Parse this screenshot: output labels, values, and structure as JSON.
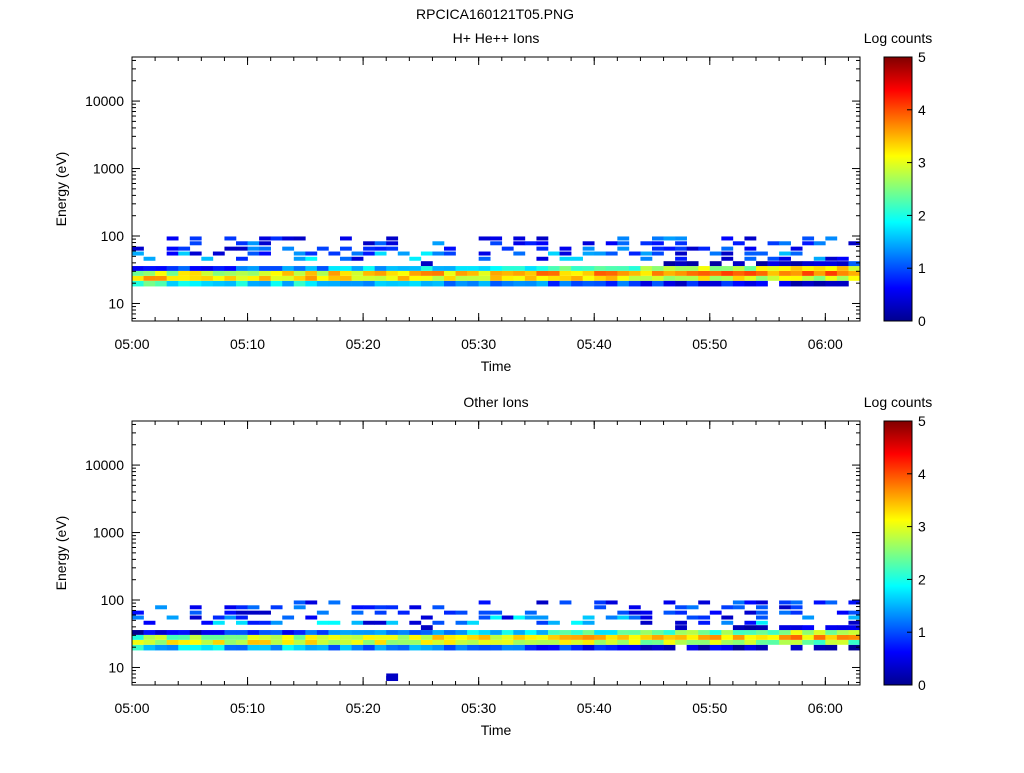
{
  "figure_title": "RPCICA160121T05.PNG",
  "colormap": [
    "#00008f",
    "#0000ff",
    "#0080ff",
    "#00ffff",
    "#80ff80",
    "#ffff00",
    "#ff8000",
    "#ff0000",
    "#800000"
  ],
  "chart_data": [
    {
      "type": "heatmap",
      "title": "H+ He++ Ions",
      "xlabel": "Time",
      "ylabel": "Energy (eV)",
      "x_ticks": [
        "05:00",
        "05:10",
        "05:20",
        "05:30",
        "05:40",
        "05:50",
        "06:00"
      ],
      "y_ticks": [
        "10",
        "100",
        "1000",
        "10000"
      ],
      "y_scale": "log",
      "xlim": [
        "05:00",
        "06:03"
      ],
      "ylim": [
        5.5,
        45000
      ],
      "colorbar": {
        "label": "Log counts",
        "range": [
          0,
          5
        ],
        "ticks": [
          "0",
          "1",
          "2",
          "3",
          "4",
          "5"
        ]
      },
      "time_bins": 63,
      "energy_bins": [
        7,
        9.5,
        12.5,
        16,
        20,
        23.5,
        28,
        33,
        39,
        46,
        55,
        65,
        78,
        92
      ],
      "sparse": [
        [
          20,
          12,
          0.3
        ],
        [
          31,
          4,
          0.3
        ],
        [
          43,
          14,
          0.3
        ],
        [
          51,
          10,
          0.3
        ],
        [
          44,
          7,
          0.3
        ],
        [
          25,
          8,
          0.3
        ],
        [
          47,
          8,
          0.3
        ],
        [
          51,
          9,
          0.3
        ],
        [
          8,
          11,
          0.3
        ],
        [
          9,
          11,
          0.3
        ],
        [
          10,
          11,
          0.3
        ],
        [
          11,
          11,
          0.3
        ],
        [
          14,
          13,
          0.3
        ],
        [
          35,
          13,
          0.3
        ],
        [
          39,
          10,
          0.3
        ],
        [
          52,
          12,
          0.3
        ],
        [
          53,
          13,
          0.3
        ],
        [
          56,
          12,
          0.3
        ]
      ]
    },
    {
      "type": "heatmap",
      "title": "Other Ions",
      "xlabel": "Time",
      "ylabel": "Energy (eV)",
      "x_ticks": [
        "05:00",
        "05:10",
        "05:20",
        "05:30",
        "05:40",
        "05:50",
        "06:00"
      ],
      "y_ticks": [
        "10",
        "100",
        "1000",
        "10000"
      ],
      "y_scale": "log",
      "xlim": [
        "05:00",
        "06:03"
      ],
      "ylim": [
        5.5,
        45000
      ],
      "colorbar": {
        "label": "Log counts",
        "range": [
          0,
          5
        ],
        "ticks": [
          "0",
          "1",
          "2",
          "3",
          "4",
          "5"
        ]
      },
      "time_bins": 63,
      "energy_bins": [
        7,
        9.5,
        12.5,
        16,
        20,
        23.5,
        28,
        33,
        39,
        46,
        55,
        65,
        78,
        92
      ],
      "sparse": [
        [
          22,
          0,
          0.3
        ],
        [
          31,
          4,
          0.3
        ],
        [
          43,
          14,
          0.3
        ],
        [
          51,
          10,
          0.3
        ],
        [
          44,
          7,
          0.3
        ],
        [
          25,
          8,
          0.3
        ],
        [
          47,
          8,
          0.3
        ],
        [
          51,
          9,
          0.3
        ],
        [
          8,
          11,
          0.3
        ],
        [
          9,
          11,
          0.3
        ],
        [
          10,
          11,
          0.3
        ],
        [
          11,
          11,
          0.3
        ],
        [
          14,
          13,
          0.3
        ],
        [
          35,
          13,
          0.3
        ],
        [
          39,
          10,
          0.3
        ],
        [
          52,
          12,
          0.3
        ],
        [
          53,
          13,
          0.3
        ],
        [
          56,
          12,
          0.3
        ]
      ]
    }
  ]
}
